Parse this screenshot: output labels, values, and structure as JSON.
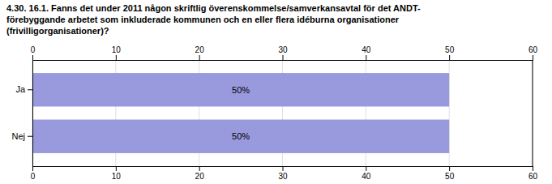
{
  "chart_data": {
    "type": "bar",
    "orientation": "horizontal",
    "title": "4.30. 16.1. Fanns det under 2011 någon skriftlig överenskommelse/samverkansavtal för det ANDT-\nförebyggande arbetet som inkluderade kommunen och en eller flera idéburna organisationer\n(frivilligorganisationer)?",
    "categories": [
      "Ja",
      "Nej"
    ],
    "values": [
      50,
      50
    ],
    "value_labels": [
      "50%",
      "50%"
    ],
    "data_labels": true,
    "color": "#9999dd",
    "xlim": [
      0,
      60
    ],
    "xticks": [
      0,
      10,
      20,
      30,
      40,
      50,
      60
    ],
    "grid": true
  }
}
